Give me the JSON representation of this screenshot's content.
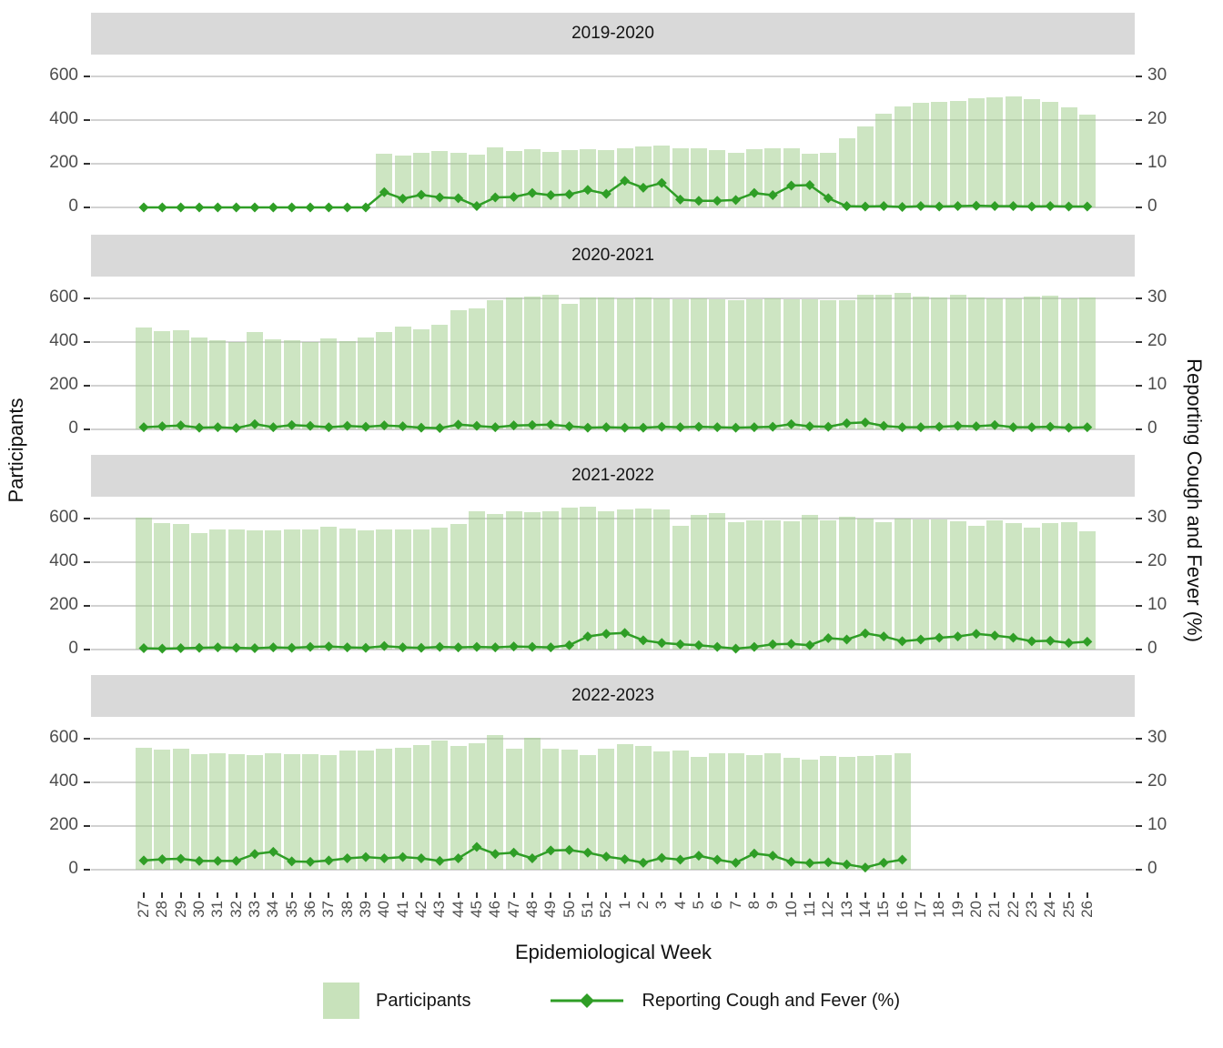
{
  "figure": {
    "x_axis_title": "Epidemiological Week",
    "y_left_title": "Participants",
    "y_right_title": "Reporting Cough and Fever (%)"
  },
  "legend": {
    "bar_label": "Participants",
    "line_label": "Reporting Cough and Fever (%)"
  },
  "colors": {
    "bar_fill": "#c8e2bb",
    "bar_fill_rgba": "rgba(160,205,138,0.52)",
    "line": "#2f9e26",
    "strip_bg": "#d9d9d9",
    "gridline": "#d2d2d2",
    "axis_text": "#4d4d4d",
    "title_text": "#111111"
  },
  "chart_data": {
    "type": "bar",
    "subtype": "faceted bar chart with overlaid line on secondary axis",
    "title": "",
    "xlabel": "Epidemiological Week",
    "ylabel_left": "Participants",
    "ylabel_right": "Reporting Cough and Fever (%)",
    "ylim_left": [
      0,
      600
    ],
    "ylim_right": [
      0,
      30
    ],
    "left_axis_ticks": [
      "600",
      "400",
      "200",
      "0"
    ],
    "left_axis_values": [
      600,
      400,
      200,
      0
    ],
    "right_axis_ticks": [
      "30",
      "20",
      "10",
      "0"
    ],
    "grid": "horizontal-major-only",
    "legend_position": "bottom",
    "weeks": [
      "27",
      "28",
      "29",
      "30",
      "31",
      "32",
      "33",
      "34",
      "35",
      "36",
      "37",
      "38",
      "39",
      "40",
      "41",
      "42",
      "43",
      "44",
      "45",
      "46",
      "47",
      "48",
      "49",
      "50",
      "51",
      "52",
      "1",
      "2",
      "3",
      "4",
      "5",
      "6",
      "7",
      "8",
      "9",
      "10",
      "11",
      "12",
      "13",
      "14",
      "15",
      "16",
      "17",
      "18",
      "19",
      "20",
      "21",
      "22",
      "23",
      "24",
      "25",
      "26"
    ],
    "facets": [
      {
        "label": "2019-2020",
        "participants": [
          null,
          null,
          null,
          null,
          null,
          null,
          null,
          null,
          null,
          null,
          null,
          null,
          null,
          245,
          238,
          252,
          258,
          252,
          242,
          275,
          258,
          265,
          255,
          262,
          268,
          262,
          272,
          278,
          282,
          270,
          272,
          262,
          248,
          265,
          270,
          272,
          245,
          252,
          315,
          372,
          430,
          462,
          478,
          483,
          488,
          500,
          505,
          510,
          495,
          482,
          460,
          425
        ],
        "pct_cough_fever": [
          0,
          0,
          0,
          0,
          0,
          0,
          0,
          0,
          0,
          0,
          0,
          0,
          0,
          3.5,
          2.0,
          2.9,
          2.3,
          2.1,
          0.3,
          2.3,
          2.4,
          3.3,
          2.8,
          3.0,
          4.0,
          3.1,
          6.1,
          4.5,
          5.6,
          1.8,
          1.5,
          1.5,
          1.7,
          3.3,
          2.8,
          5.0,
          5.1,
          2.1,
          0.3,
          0.2,
          0.3,
          0.1,
          0.3,
          0.2,
          0.3,
          0.4,
          0.3,
          0.3,
          0.2,
          0.3,
          0.2,
          0.2
        ]
      },
      {
        "label": "2020-2021",
        "participants": [
          465,
          450,
          455,
          420,
          408,
          400,
          445,
          412,
          408,
          400,
          415,
          405,
          420,
          445,
          470,
          460,
          480,
          545,
          555,
          590,
          605,
          610,
          615,
          575,
          605,
          605,
          600,
          605,
          598,
          596,
          600,
          595,
          592,
          596,
          598,
          594,
          596,
          592,
          590,
          615,
          618,
          625,
          610,
          605,
          615,
          605,
          598,
          600,
          610,
          612,
          598,
          605
        ],
        "pct_cough_fever": [
          0.5,
          0.7,
          0.9,
          0.4,
          0.5,
          0.3,
          1.2,
          0.5,
          1.0,
          0.8,
          0.5,
          0.8,
          0.6,
          0.9,
          0.7,
          0.4,
          0.3,
          1.1,
          0.8,
          0.5,
          0.9,
          1.0,
          1.1,
          0.7,
          0.4,
          0.5,
          0.4,
          0.4,
          0.6,
          0.5,
          0.6,
          0.5,
          0.4,
          0.5,
          0.6,
          1.2,
          0.7,
          0.6,
          1.4,
          1.6,
          0.8,
          0.5,
          0.5,
          0.6,
          0.8,
          0.7,
          1.0,
          0.5,
          0.5,
          0.6,
          0.4,
          0.5
        ]
      },
      {
        "label": "2021-2022",
        "participants": [
          605,
          580,
          575,
          535,
          550,
          548,
          545,
          545,
          548,
          550,
          562,
          555,
          545,
          552,
          548,
          552,
          560,
          575,
          635,
          620,
          635,
          630,
          632,
          648,
          655,
          635,
          640,
          645,
          640,
          565,
          615,
          625,
          585,
          590,
          592,
          588,
          618,
          590,
          608,
          600,
          585,
          600,
          595,
          595,
          588,
          565,
          590,
          578,
          560,
          578,
          585,
          540
        ],
        "pct_cough_fever": [
          0.3,
          0.2,
          0.3,
          0.4,
          0.5,
          0.4,
          0.3,
          0.5,
          0.4,
          0.6,
          0.7,
          0.5,
          0.4,
          0.8,
          0.5,
          0.4,
          0.6,
          0.5,
          0.6,
          0.5,
          0.7,
          0.6,
          0.5,
          1.0,
          3.0,
          3.6,
          3.8,
          2.1,
          1.5,
          1.2,
          1.0,
          0.6,
          0.2,
          0.6,
          1.2,
          1.3,
          1.0,
          2.6,
          2.3,
          3.7,
          3.0,
          1.9,
          2.3,
          2.7,
          3.0,
          3.6,
          3.2,
          2.7,
          1.9,
          2.0,
          1.5,
          1.8
        ]
      },
      {
        "label": "2022-2023",
        "participants": [
          557,
          550,
          555,
          530,
          535,
          530,
          525,
          535,
          530,
          530,
          525,
          545,
          545,
          555,
          560,
          570,
          590,
          565,
          580,
          615,
          555,
          605,
          555,
          550,
          525,
          555,
          575,
          565,
          540,
          545,
          515,
          535,
          535,
          525,
          535,
          512,
          505,
          520,
          515,
          520,
          525,
          532,
          null,
          null,
          null,
          null,
          null,
          null,
          null,
          null,
          null,
          null
        ],
        "pct_cough_fever": [
          2.1,
          2.4,
          2.5,
          2.0,
          2.0,
          2.0,
          3.6,
          4.1,
          1.9,
          1.8,
          2.1,
          2.6,
          2.9,
          2.6,
          2.9,
          2.6,
          2.0,
          2.6,
          5.2,
          3.6,
          3.9,
          2.6,
          4.4,
          4.5,
          3.9,
          3.0,
          2.4,
          1.6,
          2.7,
          2.3,
          3.2,
          2.3,
          1.6,
          3.7,
          3.2,
          1.8,
          1.5,
          1.7,
          1.2,
          0.5,
          1.6,
          2.3,
          null,
          null,
          null,
          null,
          null,
          null,
          null,
          null,
          null,
          null
        ]
      }
    ]
  }
}
